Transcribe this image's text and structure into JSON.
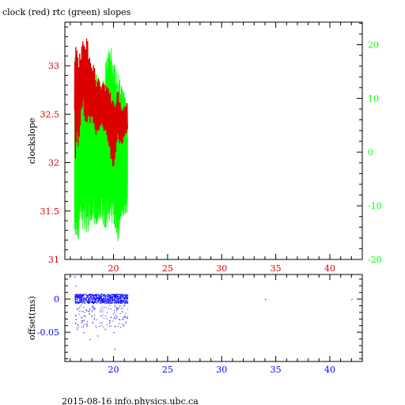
{
  "title": "clock (red) rtc (green) slopes",
  "footer": "2015-08-16 info.physics.ubc.ca",
  "colors": {
    "frame": "#000000",
    "clock": "#dd0000",
    "rtc": "#00ff00",
    "offset": "#0000ff",
    "axis_top_bottom": "#dd0000",
    "axis_left_top": "#dd0000",
    "axis_right_top": "#00ff00",
    "axis_bottom": "#0000ff"
  },
  "chart_data": [
    {
      "type": "line",
      "title": "clock (red) rtc (green) slopes",
      "xlim": [
        15.5,
        43
      ],
      "ylim": [
        31,
        33.45
      ],
      "ylabel": "clockslope",
      "x_ticks": [
        "20",
        "25",
        "30",
        "35",
        "40"
      ],
      "y_ticks": [
        "31",
        "31.5",
        "32",
        "32.5",
        "33"
      ],
      "y2label": "",
      "y2lim": [
        -20,
        24.2
      ],
      "y2_ticks": [
        "-20",
        "-10",
        "0",
        "10",
        "20"
      ],
      "series": [
        {
          "name": "clock",
          "color": "#dd0000",
          "axis": "left",
          "x_range": [
            16.4,
            21.3
          ],
          "y_range": [
            31.8,
            33.33
          ],
          "envelope": [
            {
              "x": 16.4,
              "min": 31.85,
              "max": 33.25
            },
            {
              "x": 16.8,
              "min": 32.2,
              "max": 33.2
            },
            {
              "x": 17.2,
              "min": 32.5,
              "max": 33.33
            },
            {
              "x": 17.6,
              "min": 32.3,
              "max": 33.3
            },
            {
              "x": 18.0,
              "min": 32.4,
              "max": 33.05
            },
            {
              "x": 18.4,
              "min": 32.2,
              "max": 32.95
            },
            {
              "x": 18.8,
              "min": 32.3,
              "max": 32.9
            },
            {
              "x": 19.2,
              "min": 32.25,
              "max": 32.85
            },
            {
              "x": 19.6,
              "min": 32.1,
              "max": 32.85
            },
            {
              "x": 20.0,
              "min": 31.8,
              "max": 32.7
            },
            {
              "x": 20.4,
              "min": 32.2,
              "max": 32.8
            },
            {
              "x": 20.8,
              "min": 32.15,
              "max": 32.6
            },
            {
              "x": 21.3,
              "min": 32.3,
              "max": 32.65
            }
          ]
        },
        {
          "name": "rtc",
          "color": "#00ff00",
          "axis": "right",
          "x_range": [
            16.4,
            21.3
          ],
          "y_range": [
            -18.5,
            21
          ],
          "envelope": [
            {
              "x": 16.4,
              "min": -18.5,
              "max": 20.5
            },
            {
              "x": 16.8,
              "min": -16.0,
              "max": 15.0
            },
            {
              "x": 17.2,
              "min": -14.0,
              "max": 17.0
            },
            {
              "x": 17.6,
              "min": -15.5,
              "max": 16.0
            },
            {
              "x": 18.0,
              "min": -13.0,
              "max": 14.0
            },
            {
              "x": 18.4,
              "min": -14.0,
              "max": 15.0
            },
            {
              "x": 18.8,
              "min": -12.5,
              "max": 13.0
            },
            {
              "x": 19.2,
              "min": -14.5,
              "max": 16.0
            },
            {
              "x": 19.6,
              "min": -13.0,
              "max": 21.0
            },
            {
              "x": 20.0,
              "min": -13.5,
              "max": 18.0
            },
            {
              "x": 20.4,
              "min": -17.0,
              "max": 15.0
            },
            {
              "x": 20.8,
              "min": -12.0,
              "max": 12.0
            },
            {
              "x": 21.3,
              "min": -11.5,
              "max": 9.5
            }
          ]
        }
      ]
    },
    {
      "type": "scatter",
      "xlim": [
        15.5,
        43
      ],
      "ylim": [
        -0.094,
        0.037
      ],
      "ylabel": "offset(ms)",
      "x_ticks": [
        "20",
        "25",
        "30",
        "35",
        "40"
      ],
      "y_ticks": [
        "-0.05",
        "0"
      ],
      "series": [
        {
          "name": "offset",
          "color": "#0000ff",
          "band": {
            "x": [
              16.4,
              21.3
            ],
            "y": [
              -0.006,
              0.008
            ]
          },
          "points": [
            {
              "x": 16.4,
              "y": 0.034
            },
            {
              "x": 16.5,
              "y": 0.02
            },
            {
              "x": 16.5,
              "y": -0.03
            },
            {
              "x": 16.6,
              "y": -0.045
            },
            {
              "x": 17.0,
              "y": -0.035
            },
            {
              "x": 17.2,
              "y": -0.05
            },
            {
              "x": 17.5,
              "y": -0.04
            },
            {
              "x": 17.8,
              "y": -0.06
            },
            {
              "x": 18.2,
              "y": -0.03
            },
            {
              "x": 18.5,
              "y": -0.055
            },
            {
              "x": 18.8,
              "y": -0.025
            },
            {
              "x": 19.2,
              "y": -0.045
            },
            {
              "x": 19.6,
              "y": -0.035
            },
            {
              "x": 20.0,
              "y": -0.05
            },
            {
              "x": 20.1,
              "y": -0.075
            },
            {
              "x": 20.5,
              "y": -0.03
            },
            {
              "x": 20.9,
              "y": -0.04
            },
            {
              "x": 21.2,
              "y": -0.028
            },
            {
              "x": 34.0,
              "y": 0.0
            },
            {
              "x": 42.0,
              "y": 0.0
            }
          ]
        }
      ]
    }
  ]
}
